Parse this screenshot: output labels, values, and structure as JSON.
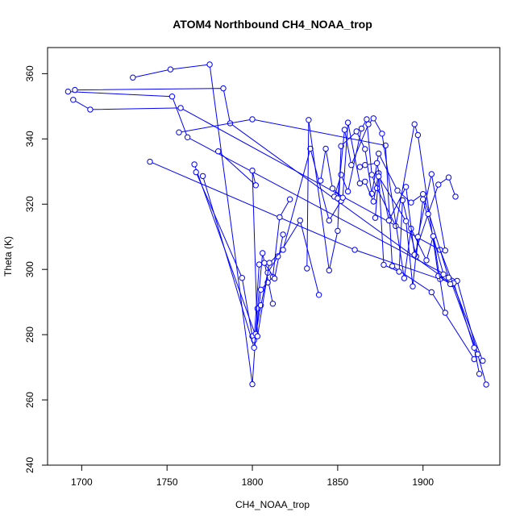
{
  "chart_data": {
    "type": "line",
    "title": "ATOM4 Northbound CH4_NOAA_trop",
    "xlabel": "CH4_NOAA_trop",
    "ylabel": "Theta (K)",
    "xlim": [
      1680,
      1945
    ],
    "ylim": [
      240,
      368
    ],
    "xticks": [
      1700,
      1750,
      1800,
      1850,
      1900
    ],
    "yticks": [
      240,
      260,
      280,
      300,
      320,
      340,
      360
    ],
    "color": "#0000ff",
    "series": [
      {
        "name": "segment-1",
        "x": [
          1692,
          1753,
          1762,
          1920,
          1937
        ],
        "y": [
          354.5,
          353,
          340.5,
          296.5,
          264.7
        ]
      },
      {
        "name": "segment-2",
        "x": [
          1695,
          1705,
          1758,
          1910,
          1935
        ],
        "y": [
          352,
          349,
          349.5,
          306,
          272
        ]
      },
      {
        "name": "segment-3",
        "x": [
          1730,
          1752,
          1775,
          1800,
          1803,
          1806,
          1812
        ],
        "y": [
          358.8,
          361.3,
          362.8,
          264.8,
          288,
          305,
          289.5
        ]
      },
      {
        "name": "segment-4",
        "x": [
          1696,
          1783,
          1787,
          1917,
          1932
        ],
        "y": [
          355,
          355.5,
          344.8,
          295.5,
          274
        ]
      },
      {
        "name": "segment-5",
        "x": [
          1757,
          1800,
          1878,
          1882,
          1905,
          1930
        ],
        "y": [
          342,
          346,
          338,
          301,
          293,
          272.5
        ]
      },
      {
        "name": "segment-6",
        "x": [
          1740,
          1860,
          1910,
          1918,
          1930,
          1933
        ],
        "y": [
          333,
          306,
          297,
          295.8,
          276,
          268
        ]
      },
      {
        "name": "segment-7",
        "x": [
          1766,
          1802,
          1805,
          1809,
          1812,
          1816,
          1822
        ],
        "y": [
          332.2,
          279.5,
          293.8,
          296,
          297.7,
          316,
          321.5
        ]
      },
      {
        "name": "segment-8",
        "x": [
          1767,
          1794,
          1800,
          1801,
          1804,
          1807,
          1813,
          1818
        ],
        "y": [
          329.8,
          297.4,
          279.5,
          278.3,
          301.5,
          302,
          297.2,
          310.7
        ]
      },
      {
        "name": "segment-9",
        "x": [
          1771,
          1801,
          1802,
          1805,
          1809,
          1815,
          1828,
          1839
        ],
        "y": [
          328.6,
          276,
          280.2,
          289,
          299,
          304,
          315,
          292.2
        ]
      },
      {
        "name": "segment-10",
        "x": [
          1780,
          1802,
          1800,
          1803,
          1810,
          1818,
          1834,
          1845,
          1852
        ],
        "y": [
          336.2,
          325.8,
          330.3,
          279.5,
          302,
          306,
          337,
          315,
          321
        ]
      },
      {
        "name": "segment-11",
        "x": [
          1832,
          1833,
          1845,
          1850,
          1852,
          1861,
          1866,
          1870,
          1874,
          1885,
          1893,
          1900,
          1915
        ],
        "y": [
          300.3,
          345.8,
          299.7,
          311.8,
          337.8,
          342.3,
          336.9,
          323.2,
          335.5,
          324.2,
          320.5,
          323.1,
          297.5
        ]
      },
      {
        "name": "segment-12",
        "x": [
          1840,
          1843,
          1847,
          1853,
          1856,
          1863,
          1866,
          1871,
          1874,
          1877,
          1886,
          1888,
          1896,
          1900,
          1912
        ],
        "y": [
          327.2,
          337,
          324.8,
          322,
          345,
          326.4,
          326.9,
          320.8,
          329.5,
          301.4,
          299.3,
          321.2,
          304,
          321.5,
          298.5
        ]
      },
      {
        "name": "segment-13",
        "x": [
          1848,
          1852,
          1856,
          1864,
          1867,
          1870,
          1873,
          1884,
          1895,
          1897,
          1909,
          1916
        ],
        "y": [
          322.3,
          329,
          323.9,
          343.2,
          346,
          329,
          324.9,
          313.3,
          344.5,
          341.2,
          298,
          295.5
        ]
      },
      {
        "name": "segment-14",
        "x": [
          1850,
          1854,
          1858,
          1868,
          1871,
          1876,
          1889,
          1893,
          1902,
          1906,
          1913
        ],
        "y": [
          321.8,
          342.8,
          332,
          344.5,
          346.3,
          341.6,
          297.3,
          312.5,
          302.8,
          310.2,
          286.7
        ]
      },
      {
        "name": "segment-15",
        "x": [
          1863,
          1866,
          1873,
          1880,
          1890,
          1895,
          1903,
          1909,
          1915,
          1919
        ],
        "y": [
          331.4,
          332,
          332.6,
          315,
          325.3,
          304.5,
          317,
          326,
          328.2,
          322.3
        ]
      },
      {
        "name": "segment-16",
        "x": [
          1872,
          1874,
          1890,
          1894,
          1897,
          1905,
          1913
        ],
        "y": [
          315.8,
          328.5,
          314.8,
          294.8,
          310,
          329.2,
          305.8
        ]
      }
    ]
  }
}
